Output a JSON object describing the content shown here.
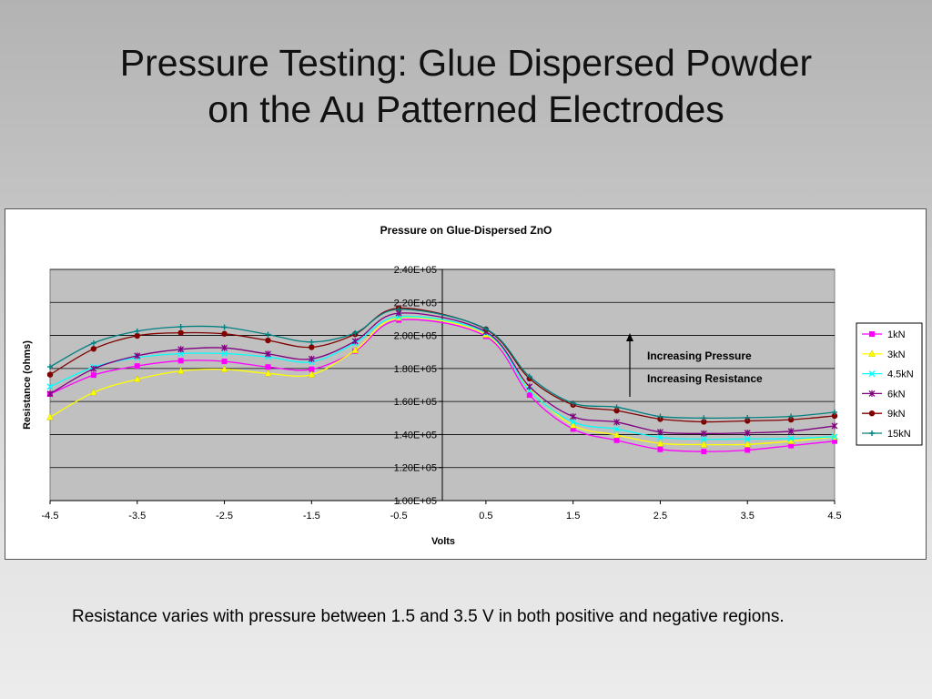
{
  "slide": {
    "title_line1": "Pressure Testing:  Glue Dispersed Powder",
    "title_line2": "on the Au Patterned Electrodes",
    "caption": "Resistance varies with pressure between 1.5 and 3.5 V in both positive and negative regions."
  },
  "chart_data": {
    "type": "line",
    "title": "Pressure on Glue-Dispersed ZnO",
    "xlabel": "Volts",
    "ylabel": "Resistance (ohms)",
    "xlim": [
      -4.5,
      4.5
    ],
    "ylim": [
      100000,
      240000
    ],
    "x_ticks": [
      -4.5,
      -3.5,
      -2.5,
      -1.5,
      -0.5,
      0.5,
      1.5,
      2.5,
      3.5,
      4.5
    ],
    "x_tick_labels": [
      "-4.5",
      "-3.5",
      "-2.5",
      "-1.5",
      "-0.5",
      "0.5",
      "1.5",
      "2.5",
      "3.5",
      "4.5"
    ],
    "y_ticks": [
      100000,
      120000,
      140000,
      160000,
      180000,
      200000,
      220000,
      240000
    ],
    "y_tick_labels": [
      "1.00E+05",
      "1.20E+05",
      "1.40E+05",
      "1.60E+05",
      "1.80E+05",
      "2.00E+05",
      "2.20E+05",
      "2.40E+05"
    ],
    "grid": true,
    "plot_background": "#c0c0c0",
    "legend_position": "right",
    "x": [
      -4.5,
      -4.0,
      -3.5,
      -3.0,
      -2.5,
      -2.0,
      -1.5,
      -1.0,
      -0.5,
      0.5,
      1.0,
      1.5,
      2.0,
      2.5,
      3.0,
      3.5,
      4.0,
      4.5
    ],
    "series": [
      {
        "name": "1kN",
        "color": "#ff00ff",
        "marker": "square",
        "values": [
          164500,
          176000,
          181500,
          184700,
          184300,
          180900,
          179500,
          190500,
          209300,
          199500,
          163900,
          143300,
          136500,
          131000,
          129700,
          130600,
          133300,
          136000
        ]
      },
      {
        "name": "3kN",
        "color": "#ffff00",
        "marker": "triangle",
        "values": [
          150500,
          165500,
          173500,
          178500,
          179500,
          177000,
          176300,
          191000,
          210700,
          200500,
          167500,
          145600,
          139700,
          134600,
          133900,
          134000,
          136000,
          138500
        ]
      },
      {
        "name": "4.5kN",
        "color": "#00ffff",
        "marker": "x",
        "values": [
          169000,
          180800,
          186600,
          189000,
          189000,
          187000,
          184000,
          195400,
          211300,
          201500,
          166800,
          147600,
          143300,
          138300,
          137200,
          137300,
          137600,
          138700
        ]
      },
      {
        "name": "6kN",
        "color": "#800080",
        "marker": "star",
        "values": [
          164700,
          179800,
          187700,
          191600,
          192500,
          188800,
          185800,
          196500,
          213500,
          202200,
          169000,
          150900,
          147500,
          141500,
          140600,
          141000,
          142000,
          145200
        ]
      },
      {
        "name": "9kN",
        "color": "#800000",
        "marker": "circle",
        "values": [
          176300,
          191900,
          199800,
          201600,
          201000,
          197000,
          192900,
          200800,
          216500,
          203700,
          173900,
          158000,
          154500,
          149400,
          147700,
          148300,
          149000,
          151300
        ]
      },
      {
        "name": "15kN",
        "color": "#008080",
        "marker": "plus",
        "values": [
          181000,
          195400,
          202600,
          205300,
          205000,
          200600,
          196000,
          201500,
          215800,
          204000,
          175200,
          159000,
          156600,
          150900,
          150000,
          150200,
          151000,
          153500
        ]
      }
    ],
    "annotations": [
      "Increasing Pressure",
      "Increasing Resistance"
    ]
  }
}
